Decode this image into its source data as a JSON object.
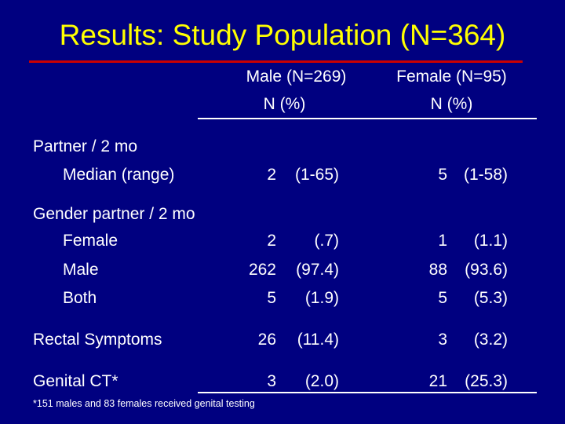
{
  "title": "Results: Study Population (N=364)",
  "colors": {
    "title": "#ffff00",
    "rule": "#cc0000",
    "background": "#000080",
    "text": "#ffffff"
  },
  "columns": {
    "male": {
      "header": "Male  (N=269)",
      "sub": "N (%)"
    },
    "female": {
      "header": "Female  (N=95)",
      "sub": "N (%)"
    }
  },
  "sections": {
    "partner": {
      "label": "Partner / 2 mo",
      "median": {
        "label": "Median (range)",
        "male_n": "2",
        "male_p": "(1-65)",
        "female_n": "5",
        "female_p": "(1-58)"
      }
    },
    "gender": {
      "label": "Gender partner / 2 mo",
      "female": {
        "label": "Female",
        "male_n": "2",
        "male_p": "(.7)",
        "female_n": "1",
        "female_p": "(1.1)"
      },
      "male": {
        "label": "Male",
        "male_n": "262",
        "male_p": "(97.4)",
        "female_n": "88",
        "female_p": "(93.6)"
      },
      "both": {
        "label": "Both",
        "male_n": "5",
        "male_p": "(1.9)",
        "female_n": "5",
        "female_p": "(5.3)"
      }
    },
    "rectal": {
      "label": "Rectal Symptoms",
      "male_n": "26",
      "male_p": "(11.4)",
      "female_n": "3",
      "female_p": "(3.2)"
    },
    "genital": {
      "label": "Genital CT*",
      "male_n": "3",
      "male_p": "(2.0)",
      "female_n": "21",
      "female_p": "(25.3)"
    }
  },
  "footnote": "*151 males and 83 females received genital testing"
}
